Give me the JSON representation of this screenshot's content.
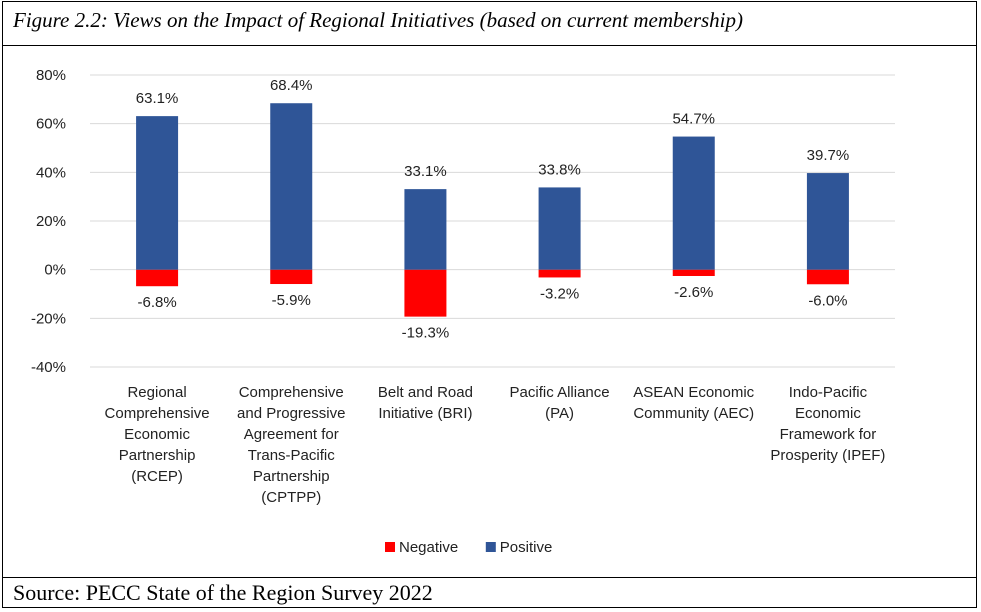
{
  "figure_title": "Figure 2.2: Views on the Impact of Regional Initiatives (based on current membership)",
  "source": "Source: PECC State of the Region Survey 2022",
  "chart_data": {
    "type": "bar",
    "stacked": true,
    "categories": [
      [
        "Regional",
        "Comprehensive",
        "Economic",
        "Partnership",
        "(RCEP)"
      ],
      [
        "Comprehensive",
        "and Progressive",
        "Agreement for",
        "Trans-Pacific",
        "Partnership",
        "(CPTPP)"
      ],
      [
        "Belt and Road",
        "Initiative (BRI)"
      ],
      [
        "Pacific Alliance",
        "(PA)"
      ],
      [
        "ASEAN Economic",
        "Community (AEC)"
      ],
      [
        "Indo-Pacific",
        "Economic",
        "Framework for",
        "Prosperity (IPEF)"
      ]
    ],
    "series": [
      {
        "name": "Negative",
        "color": "#ff0000",
        "values": [
          -6.8,
          -5.9,
          -19.3,
          -3.2,
          -2.6,
          -6.0
        ],
        "labels": [
          "-6.8%",
          "-5.9%",
          "-19.3%",
          "-3.2%",
          "-2.6%",
          "-6.0%"
        ]
      },
      {
        "name": "Positive",
        "color": "#2f5597",
        "values": [
          63.1,
          68.4,
          33.1,
          33.8,
          54.7,
          39.7
        ],
        "labels": [
          "63.1%",
          "68.4%",
          "33.1%",
          "33.8%",
          "54.7%",
          "39.7%"
        ]
      }
    ],
    "ylim": [
      -40,
      80
    ],
    "yticks": [
      80,
      60,
      40,
      20,
      0,
      -20,
      -40
    ],
    "ytick_labels": [
      "80%",
      "60%",
      "40%",
      "20%",
      "0%",
      "-20%",
      "-40%"
    ],
    "grid": true,
    "legend_position": "bottom"
  }
}
